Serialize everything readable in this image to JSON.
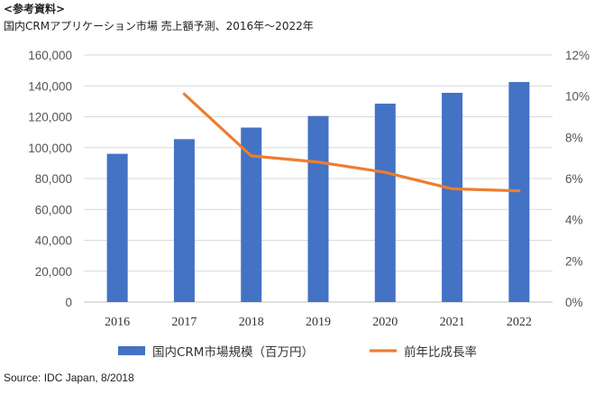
{
  "header": {
    "ref_label": "<参考資料>",
    "title": "国内CRMアプリケーション市場 売上額予測、2016年～2022年"
  },
  "footer": {
    "source": "Source: IDC Japan, 8/2018"
  },
  "chart_data": {
    "type": "bar",
    "categories": [
      "2016",
      "2017",
      "2018",
      "2019",
      "2020",
      "2021",
      "2022"
    ],
    "series": [
      {
        "name": "国内CRM市場規模（百万円）",
        "type": "bar",
        "axis": "left",
        "color": "#4472C4",
        "values": [
          96000,
          105500,
          113000,
          120500,
          128500,
          135500,
          142500
        ]
      },
      {
        "name": "前年比成長率",
        "type": "line",
        "axis": "right",
        "color": "#ED7D31",
        "values": [
          null,
          10.1,
          7.1,
          6.8,
          6.3,
          5.5,
          5.4
        ]
      }
    ],
    "y_left": {
      "lim": [
        0,
        160000
      ],
      "ticks": [
        "0",
        "20,000",
        "40,000",
        "60,000",
        "80,000",
        "100,000",
        "120,000",
        "140,000",
        "160,000"
      ]
    },
    "y_right": {
      "lim": [
        0,
        12
      ],
      "ticks": [
        "0%",
        "2%",
        "4%",
        "6%",
        "8%",
        "10%",
        "12%"
      ]
    },
    "grid": true,
    "legend_position": "bottom"
  }
}
